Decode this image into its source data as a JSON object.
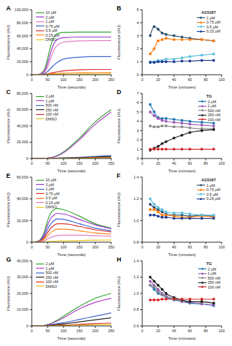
{
  "chart_data": [
    {
      "type": "line",
      "annotations": [
        "A"
      ],
      "xlabel": "Time (seconds)",
      "ylabel": "Fluorescence (AU)",
      "legend": "upper left",
      "x": [
        0,
        20,
        40,
        50,
        60,
        70,
        80,
        100,
        150,
        200,
        250
      ],
      "xlim": [
        0,
        250
      ],
      "xticks": [
        0,
        50,
        100,
        150,
        200,
        250
      ],
      "ylim": [
        0,
        100000
      ],
      "yticks": [
        0,
        {
          "value": 20000,
          "label": "20,000"
        },
        {
          "value": 40000,
          "label": "40,000"
        },
        {
          "value": 60000,
          "label": "60,000"
        },
        {
          "value": 80000,
          "label": "80,000"
        },
        {
          "value": 100000,
          "label": "100,000"
        }
      ],
      "series": [
        {
          "name": "10 µM",
          "color": "#2ca02c",
          "values": [
            0,
            500,
            8000,
            25000,
            45000,
            58000,
            63000,
            65000,
            65500,
            65500,
            65500
          ]
        },
        {
          "name": "2 µM",
          "color": "#9b30c8",
          "values": [
            0,
            400,
            6000,
            18000,
            35000,
            48000,
            54000,
            57000,
            58000,
            58000,
            58000
          ]
        },
        {
          "name": "1 µM",
          "color": "#e377c2",
          "values": [
            0,
            300,
            4000,
            12000,
            26000,
            38000,
            45000,
            50000,
            52000,
            52500,
            52500
          ]
        },
        {
          "name": "0.75 µM",
          "color": "#3a5fcd",
          "values": [
            0,
            200,
            2000,
            5000,
            10000,
            15000,
            19000,
            24000,
            27000,
            28000,
            28000
          ]
        },
        {
          "name": "0.5 µM",
          "color": "#d62728",
          "values": [
            0,
            100,
            800,
            1500,
            2500,
            3500,
            4500,
            6000,
            7500,
            8000,
            8000
          ]
        },
        {
          "name": "0.25 µM",
          "color": "#ff7f0e",
          "values": [
            0,
            100,
            500,
            900,
            1300,
            1700,
            2000,
            2500,
            3000,
            3200,
            3300
          ]
        },
        {
          "name": "DMSO",
          "color": "#e6c619",
          "values": [
            0,
            100,
            200,
            300,
            400,
            500,
            600,
            700,
            900,
            1000,
            1100
          ]
        }
      ]
    },
    {
      "type": "line",
      "annotations": [
        "B"
      ],
      "title": "A23187",
      "xlabel": "Time (minutes)",
      "ylabel": "Fluorescence (AU)",
      "legend": "upper right",
      "x": [
        10,
        15,
        20,
        25,
        30,
        40,
        50,
        60,
        75,
        90
      ],
      "xlim": [
        0,
        100
      ],
      "xticks": [
        0,
        20,
        40,
        60,
        80,
        100
      ],
      "ylim": [
        0,
        5
      ],
      "yticks": [
        0,
        1,
        2,
        3,
        4,
        5
      ],
      "series": [
        {
          "name": "1 µM",
          "color": "#2f4f6f",
          "marker": "circle",
          "values": [
            3.0,
            3.7,
            3.5,
            3.2,
            3.1,
            3.0,
            2.9,
            2.8,
            2.7,
            2.6
          ]
        },
        {
          "name": "0.75 µM",
          "color": "#ff7f0e",
          "marker": "circle",
          "values": [
            1.6,
            2.0,
            2.6,
            2.7,
            2.8,
            2.7,
            2.7,
            2.7,
            2.7,
            2.6
          ]
        },
        {
          "name": "0.5 µM",
          "color": "#5bc0de",
          "marker": "circle",
          "values": [
            1.0,
            1.0,
            1.1,
            1.1,
            1.2,
            1.2,
            1.3,
            1.4,
            1.5,
            1.6
          ]
        },
        {
          "name": "0.25 µM",
          "color": "#1f3a93",
          "marker": "circle",
          "values": [
            0.95,
            0.95,
            1.0,
            1.0,
            1.0,
            1.0,
            1.05,
            1.05,
            1.1,
            1.1
          ]
        }
      ]
    },
    {
      "type": "line",
      "annotations": [
        "C"
      ],
      "xlabel": "Time (seconds)",
      "ylabel": "Fluorescence (AU)",
      "legend": "upper left",
      "x": [
        0,
        20,
        40,
        50,
        60,
        70,
        80,
        100,
        150,
        200,
        250
      ],
      "xlim": [
        0,
        250
      ],
      "xticks": [
        0,
        50,
        100,
        150,
        200,
        250
      ],
      "ylim": [
        0,
        80000
      ],
      "yticks": [
        0,
        {
          "value": 20000,
          "label": "20,000"
        },
        {
          "value": 40000,
          "label": "40,000"
        },
        {
          "value": 60000,
          "label": "60,000"
        },
        {
          "value": 80000,
          "label": "80,000"
        }
      ],
      "series": [
        {
          "name": "2 µM",
          "color": "#2ca02c",
          "values": [
            0,
            0,
            200,
            500,
            1000,
            2000,
            3500,
            8000,
            25000,
            45000,
            60000
          ]
        },
        {
          "name": "1 µM",
          "color": "#b03cc8",
          "values": [
            0,
            0,
            200,
            500,
            1000,
            1800,
            3000,
            7000,
            23000,
            42000,
            57000
          ]
        },
        {
          "name": "500 nM",
          "color": "#3a5fcd",
          "values": [
            0,
            0,
            100,
            200,
            300,
            400,
            500,
            700,
            1500,
            2500,
            3500
          ]
        },
        {
          "name": "250 nM",
          "color": "#222222",
          "values": [
            0,
            0,
            100,
            150,
            200,
            300,
            400,
            500,
            1000,
            1800,
            2500
          ]
        },
        {
          "name": "100 nM",
          "color": "#d62728",
          "values": [
            0,
            0,
            50,
            100,
            150,
            200,
            250,
            300,
            600,
            900,
            1200
          ]
        },
        {
          "name": "DMSO",
          "color": "#e6c619",
          "values": [
            0,
            0,
            50,
            80,
            100,
            150,
            200,
            250,
            400,
            600,
            800
          ]
        }
      ]
    },
    {
      "type": "line",
      "annotations": [
        "D"
      ],
      "title": "TG",
      "xlabel": "Time (minutes)",
      "ylabel": "Fluorescence (AU)",
      "legend": "upper right",
      "x": [
        10,
        15,
        20,
        25,
        30,
        40,
        50,
        60,
        75,
        90
      ],
      "xlim": [
        0,
        100
      ],
      "xticks": [
        0,
        20,
        40,
        60,
        80,
        100
      ],
      "ylim": [
        0,
        7
      ],
      "yticks": [
        0,
        1,
        2,
        3,
        4,
        5,
        6,
        7
      ],
      "series": [
        {
          "name": "2 µM",
          "color": "#1f77b4",
          "marker": "circle",
          "values": [
            5.8,
            5.0,
            4.4,
            4.3,
            4.3,
            4.2,
            4.1,
            4.0,
            3.9,
            3.8
          ]
        },
        {
          "name": "1 µM",
          "color": "#9b59b6",
          "marker": "circle",
          "values": [
            5.0,
            4.6,
            4.3,
            4.1,
            4.0,
            3.9,
            3.8,
            3.7,
            3.6,
            3.5
          ]
        },
        {
          "name": "500 nM",
          "color": "#888888",
          "marker": "circle",
          "values": [
            3.5,
            3.4,
            3.4,
            3.5,
            3.5,
            3.4,
            3.4,
            3.3,
            3.2,
            3.2
          ]
        },
        {
          "name": "250 nM",
          "color": "#222222",
          "marker": "circle",
          "values": [
            0.9,
            1.1,
            1.3,
            1.6,
            1.8,
            2.2,
            2.5,
            2.8,
            3.0,
            3.1
          ]
        },
        {
          "name": "100 nM",
          "color": "#d62728",
          "marker": "circle",
          "values": [
            1.0,
            1.0,
            1.0,
            1.0,
            1.0,
            1.0,
            1.0,
            1.0,
            1.0,
            1.0
          ]
        }
      ]
    },
    {
      "type": "line",
      "annotations": [
        "E"
      ],
      "xlabel": "Time (seconds)",
      "ylabel": "Fluorescence (AU)",
      "legend": "upper left",
      "x": [
        0,
        20,
        40,
        50,
        60,
        70,
        80,
        100,
        150,
        200,
        250
      ],
      "xlim": [
        0,
        250
      ],
      "xticks": [
        0,
        50,
        100,
        150,
        200,
        250
      ],
      "ylim": [
        0,
        60000
      ],
      "yticks": [
        0,
        {
          "value": 20000,
          "label": "20,000"
        },
        {
          "value": 40000,
          "label": "40,000"
        },
        {
          "value": 60000,
          "label": "60,000"
        }
      ],
      "series": [
        {
          "name": "10 µM",
          "color": "#2ca02c",
          "values": [
            0,
            1000,
            10000,
            20000,
            27000,
            30000,
            31000,
            30000,
            24000,
            17000,
            13000
          ]
        },
        {
          "name": "2 µM",
          "color": "#9b30c8",
          "values": [
            0,
            800,
            8000,
            16000,
            22000,
            25000,
            26500,
            26000,
            21000,
            16000,
            12500
          ]
        },
        {
          "name": "1 µM",
          "color": "#3a5fcd",
          "values": [
            0,
            600,
            6000,
            12000,
            17000,
            20000,
            21500,
            21000,
            17000,
            13000,
            10500
          ]
        },
        {
          "name": "0.75 µM",
          "color": "#d62728",
          "values": [
            0,
            500,
            4500,
            9000,
            13000,
            15500,
            17000,
            17000,
            14500,
            11500,
            9500
          ]
        },
        {
          "name": "0.5 µM",
          "color": "#ff7f0e",
          "values": [
            0,
            400,
            3000,
            6000,
            9000,
            11000,
            12000,
            12000,
            10500,
            8500,
            7500
          ]
        },
        {
          "name": "0.25 µM",
          "color": "#e377c2",
          "values": [
            0,
            300,
            1500,
            3000,
            4500,
            5500,
            6000,
            6500,
            6500,
            6000,
            5500
          ]
        },
        {
          "name": "DMSO",
          "color": "#e6c619",
          "values": [
            0,
            100,
            300,
            500,
            700,
            900,
            1000,
            1200,
            1500,
            1800,
            2000
          ]
        }
      ]
    },
    {
      "type": "line",
      "annotations": [
        "F"
      ],
      "title": "A23187",
      "xlabel": "Time (minutes)",
      "ylabel": "Fluorescence (AU)",
      "legend": "upper right",
      "x": [
        10,
        15,
        20,
        25,
        30,
        40,
        50,
        60,
        75,
        90
      ],
      "xlim": [
        0,
        100
      ],
      "xticks": [
        0,
        20,
        40,
        60,
        80,
        100
      ],
      "ylim": [
        0.8,
        1.4
      ],
      "yticks": [
        0.8,
        {
          "value": 1,
          "label": "1.0"
        },
        1.2,
        1.4
      ],
      "series": [
        {
          "name": "1 µM",
          "color": "#2f4f6f",
          "marker": "circle",
          "values": [
            1.15,
            1.12,
            1.1,
            1.08,
            1.06,
            1.05,
            1.05,
            1.04,
            1.05,
            1.04
          ]
        },
        {
          "name": "0.75 µM",
          "color": "#ff7f0e",
          "marker": "circle",
          "values": [
            1.1,
            1.1,
            1.08,
            1.05,
            1.05,
            1.04,
            1.03,
            1.03,
            1.04,
            1.03
          ]
        },
        {
          "name": "0.5 µM",
          "color": "#5bc0de",
          "marker": "circle",
          "values": [
            1.2,
            1.15,
            1.12,
            1.1,
            1.08,
            1.07,
            1.07,
            1.06,
            1.05,
            1.05
          ]
        },
        {
          "name": "0.25 µM",
          "color": "#1f3a93",
          "marker": "circle",
          "values": [
            1.05,
            1.05,
            1.04,
            1.03,
            1.03,
            1.02,
            1.02,
            1.02,
            1.02,
            1.02
          ]
        }
      ]
    },
    {
      "type": "line",
      "annotations": [
        "G"
      ],
      "xlabel": "Time (seconds)",
      "ylabel": "Fluorescence (AU)",
      "legend": "upper left",
      "x": [
        0,
        20,
        40,
        50,
        60,
        70,
        80,
        100,
        150,
        200,
        250
      ],
      "xlim": [
        0,
        250
      ],
      "xticks": [
        0,
        50,
        100,
        150,
        200,
        250
      ],
      "ylim": [
        0,
        40000
      ],
      "yticks": [
        0,
        {
          "value": 10000,
          "label": "10,000"
        },
        {
          "value": 20000,
          "label": "20,000"
        },
        {
          "value": 30000,
          "label": "30,000"
        },
        {
          "value": 40000,
          "label": "40,000"
        }
      ],
      "series": [
        {
          "name": "2 µM",
          "color": "#2ca02c",
          "values": [
            0,
            0,
            300,
            800,
            1500,
            2500,
            3500,
            6000,
            12000,
            17000,
            20000
          ]
        },
        {
          "name": "1 µM",
          "color": "#b03cc8",
          "values": [
            0,
            0,
            300,
            700,
            1300,
            2200,
            3000,
            5000,
            10500,
            14500,
            17000
          ]
        },
        {
          "name": "500 nM",
          "color": "#3a5fcd",
          "values": [
            0,
            0,
            200,
            400,
            700,
            1000,
            1400,
            2000,
            4000,
            6000,
            8000
          ]
        },
        {
          "name": "250 nM",
          "color": "#222222",
          "values": [
            0,
            0,
            150,
            300,
            500,
            700,
            900,
            1300,
            2500,
            3800,
            5000
          ]
        },
        {
          "name": "100 nM",
          "color": "#d62728",
          "values": [
            0,
            0,
            100,
            200,
            300,
            400,
            500,
            600,
            1000,
            1400,
            1800
          ]
        },
        {
          "name": "DMSO",
          "color": "#e6c619",
          "values": [
            0,
            0,
            50,
            100,
            150,
            200,
            250,
            300,
            500,
            700,
            900
          ]
        }
      ]
    },
    {
      "type": "line",
      "annotations": [
        "H"
      ],
      "title": "TG",
      "xlabel": "Time (minutes)",
      "ylabel": "Fluorescence (AU)",
      "legend": "upper right",
      "x": [
        10,
        15,
        20,
        25,
        30,
        40,
        50,
        60,
        75,
        90
      ],
      "xlim": [
        0,
        100
      ],
      "xticks": [
        0,
        20,
        40,
        60,
        80,
        100
      ],
      "ylim": [
        0.6,
        1.4
      ],
      "yticks": [
        0.6,
        0.8,
        {
          "value": 1,
          "label": "1.0"
        },
        1.2,
        1.4
      ],
      "series": [
        {
          "name": "2 µM",
          "color": "#1f77b4",
          "marker": "circle",
          "values": [
            1.1,
            1.05,
            1.0,
            0.98,
            0.95,
            0.92,
            0.9,
            0.88,
            0.87,
            0.85
          ]
        },
        {
          "name": "1 µM",
          "color": "#9b59b6",
          "marker": "circle",
          "values": [
            1.15,
            1.1,
            1.05,
            1.0,
            0.97,
            0.93,
            0.9,
            0.89,
            0.87,
            0.86
          ]
        },
        {
          "name": "500 nM",
          "color": "#888888",
          "marker": "circle",
          "values": [
            1.1,
            1.08,
            1.02,
            0.98,
            0.96,
            0.93,
            0.91,
            0.9,
            0.89,
            0.88
          ]
        },
        {
          "name": "250 nM",
          "color": "#222222",
          "marker": "circle",
          "values": [
            1.2,
            1.15,
            1.1,
            1.05,
            1.0,
            0.95,
            0.92,
            0.9,
            0.9,
            0.88
          ]
        },
        {
          "name": "100 nM",
          "color": "#d62728",
          "marker": "circle",
          "values": [
            0.92,
            0.92,
            0.92,
            0.93,
            0.93,
            0.93,
            0.93,
            0.93,
            0.93,
            0.93
          ]
        }
      ]
    }
  ]
}
